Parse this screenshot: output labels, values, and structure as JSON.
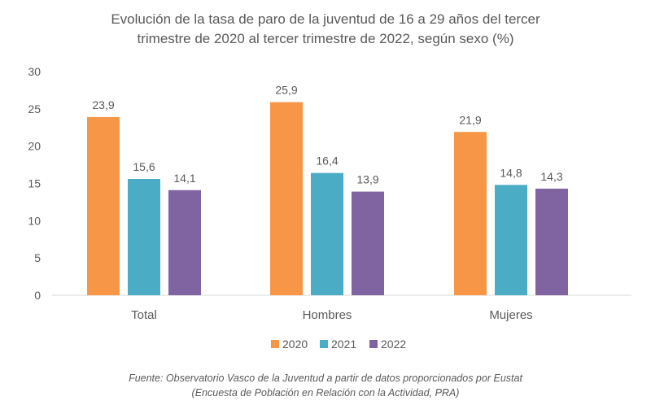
{
  "chart_data": {
    "type": "bar",
    "title_lines": [
      "Evolución de la tasa de paro de la juventud de 16 a 29 años del tercer",
      "trimestre de 2020 al tercer trimestre de 2022, según sexo (%)"
    ],
    "categories": [
      "Total",
      "Hombres",
      "Mujeres"
    ],
    "series": [
      {
        "name": "2020",
        "values": [
          23.9,
          25.9,
          21.9
        ],
        "labels": [
          "23,9",
          "25,9",
          "21,9"
        ],
        "color": "#F79646"
      },
      {
        "name": "2021",
        "values": [
          15.6,
          16.4,
          14.8
        ],
        "labels": [
          "15,6",
          "16,4",
          "14,8"
        ],
        "color": "#4BACC6"
      },
      {
        "name": "2022",
        "values": [
          14.1,
          13.9,
          14.3
        ],
        "labels": [
          "14,1",
          "13,9",
          "14,3"
        ],
        "color": "#8064A2"
      }
    ],
    "yticks": [
      "0",
      "5",
      "10",
      "15",
      "20",
      "25",
      "30"
    ],
    "ylim": [
      0,
      30
    ],
    "grid": false,
    "legend_position": "bottom",
    "source_lines": [
      "Fuente: Observatorio Vasco de la Juventud a partir de datos proporcionados por Eustat",
      "(Encuesta de Población en Relación con la Actividad, PRA)"
    ]
  }
}
